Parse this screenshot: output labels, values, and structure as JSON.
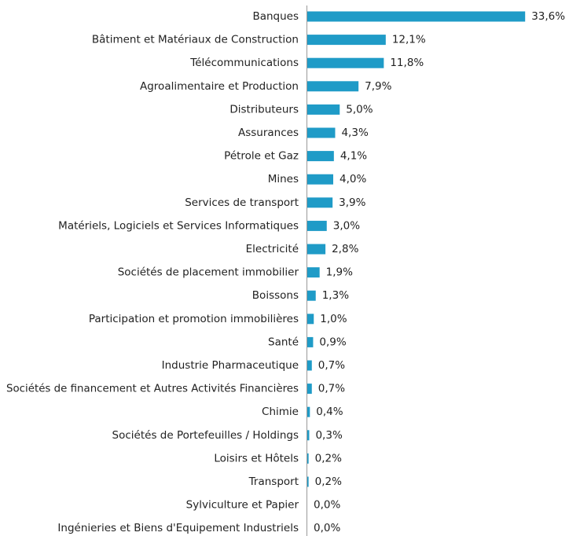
{
  "chart_data": {
    "type": "bar",
    "orientation": "horizontal",
    "color": "#1f9bc7",
    "categories": [
      "Banques",
      "Bâtiment et Matériaux de Construction",
      "Télécommunications",
      "Agroalimentaire et Production",
      "Distributeurs",
      "Assurances",
      "Pétrole et Gaz",
      "Mines",
      "Services de transport",
      "Matériels, Logiciels et Services Informatiques",
      "Electricité",
      "Sociétés de placement immobilier",
      "Boissons",
      "Participation et promotion immobilières",
      "Santé",
      "Industrie Pharmaceutique",
      "Sociétés de financement et Autres Activités Financières",
      "Chimie",
      "Sociétés de Portefeuilles / Holdings",
      "Loisirs et Hôtels",
      "Transport",
      "Sylviculture et Papier",
      "Ingénieries et Biens d'Equipement Industriels"
    ],
    "values": [
      33.6,
      12.1,
      11.8,
      7.9,
      5.0,
      4.3,
      4.1,
      4.0,
      3.9,
      3.0,
      2.8,
      1.9,
      1.3,
      1.0,
      0.9,
      0.7,
      0.7,
      0.4,
      0.3,
      0.2,
      0.2,
      0.0,
      0.0
    ],
    "value_labels": [
      "33,6%",
      "12,1%",
      "11,8%",
      "7,9%",
      "5,0%",
      "4,3%",
      "4,1%",
      "4,0%",
      "3,9%",
      "3,0%",
      "2,8%",
      "1,9%",
      "1,3%",
      "1,0%",
      "0,9%",
      "0,7%",
      "0,7%",
      "0,4%",
      "0,3%",
      "0,2%",
      "0,2%",
      "0,0%",
      "0,0%"
    ]
  }
}
